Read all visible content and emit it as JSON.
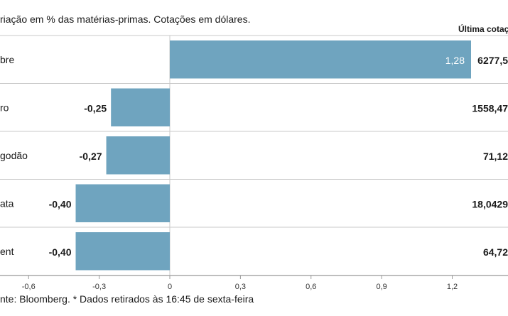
{
  "chart_data": {
    "type": "bar",
    "orientation": "horizontal",
    "subtitle": "riação em % das matérias-primas. Cotações em dólares.",
    "last_quote_header": "Última cotaç",
    "categories": [
      "bre",
      "ro",
      "godão",
      "ata",
      "ent"
    ],
    "values": [
      1.28,
      -0.25,
      -0.27,
      -0.4,
      -0.4
    ],
    "value_labels": [
      "1,28",
      "-0,25",
      "-0,27",
      "-0,40",
      "-0,40"
    ],
    "last_quotes": [
      "6277,5",
      "1558,47",
      "71,12",
      "18,0429",
      "64,72"
    ],
    "xlim": [
      -0.72,
      1.45
    ],
    "xticks": [
      -0.6,
      -0.3,
      0,
      0.3,
      0.6,
      0.9,
      1.2
    ],
    "xtick_labels": [
      "-0,6",
      "-0,3",
      "0",
      "0,3",
      "0,6",
      "0,9",
      "1,2"
    ],
    "bar_color": "#6fa4bf",
    "footnote": "nte: Bloomberg.  * Dados retirados às 16:45 de sexta-feira"
  }
}
